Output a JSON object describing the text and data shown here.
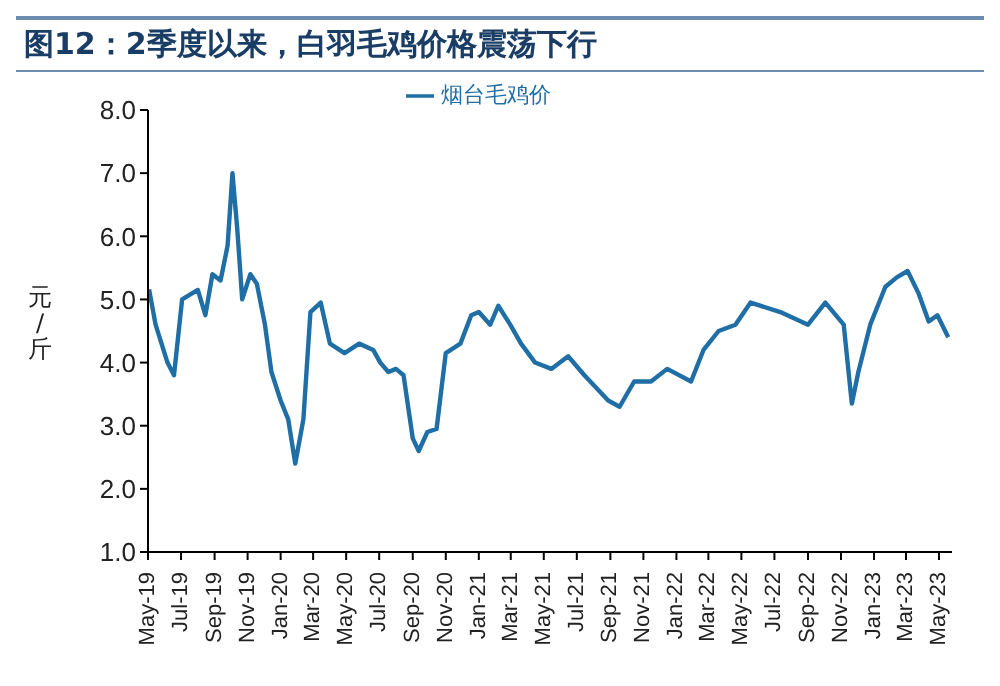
{
  "chart_data": {
    "type": "line",
    "title": "图12：2季度以来，白羽毛鸡价格震荡下行",
    "ylabel": "元/斤",
    "xlim": [
      "2019-05-01",
      "2023-05-25"
    ],
    "xticks": [
      {
        "value": "2019-05",
        "label": "May-19"
      },
      {
        "value": "2019-07",
        "label": "Jul-19"
      },
      {
        "value": "2019-09",
        "label": "Sep-19"
      },
      {
        "value": "2019-11",
        "label": "Nov-19"
      },
      {
        "value": "2020-01",
        "label": "Jan-20"
      },
      {
        "value": "2020-03",
        "label": "Mar-20"
      },
      {
        "value": "2020-05",
        "label": "May-20"
      },
      {
        "value": "2020-07",
        "label": "Jul-20"
      },
      {
        "value": "2020-09",
        "label": "Sep-20"
      },
      {
        "value": "2020-11",
        "label": "Nov-20"
      },
      {
        "value": "2021-01",
        "label": "Jan-21"
      },
      {
        "value": "2021-03",
        "label": "Mar-21"
      },
      {
        "value": "2021-05",
        "label": "May-21"
      },
      {
        "value": "2021-07",
        "label": "Jul-21"
      },
      {
        "value": "2021-09",
        "label": "Sep-21"
      },
      {
        "value": "2021-11",
        "label": "Nov-21"
      },
      {
        "value": "2022-01",
        "label": "Jan-22"
      },
      {
        "value": "2022-03",
        "label": "Mar-22"
      },
      {
        "value": "2022-05",
        "label": "May-22"
      },
      {
        "value": "2022-07",
        "label": "Jul-22"
      },
      {
        "value": "2022-09",
        "label": "Sep-22"
      },
      {
        "value": "2022-11",
        "label": "Nov-22"
      },
      {
        "value": "2023-01",
        "label": "Jan-23"
      },
      {
        "value": "2023-03",
        "label": "Mar-23"
      },
      {
        "value": "2023-05",
        "label": "May-23"
      }
    ],
    "ylim": [
      1,
      8
    ],
    "yticks": [
      {
        "value": 1,
        "label": "1.0"
      },
      {
        "value": 2,
        "label": "2.0"
      },
      {
        "value": 3,
        "label": "3.0"
      },
      {
        "value": 4,
        "label": "4.0"
      },
      {
        "value": 5,
        "label": "5.0"
      },
      {
        "value": 6,
        "label": "6.0"
      },
      {
        "value": 7,
        "label": "7.0"
      },
      {
        "value": 8,
        "label": "8.0"
      }
    ],
    "grid": false,
    "legend": "top",
    "marker": "none",
    "line_style": "solid",
    "x": [
      "2019-05-03",
      "2019-05-15",
      "2019-06-06",
      "2019-06-18",
      "2019-07-03",
      "2019-08-01",
      "2019-08-15",
      "2019-08-28",
      "2019-09-12",
      "2019-09-25",
      "2019-10-04",
      "2019-10-13",
      "2019-10-22",
      "2019-11-06",
      "2019-11-18",
      "2019-12-03",
      "2019-12-15",
      "2020-01-01",
      "2020-01-15",
      "2020-01-28",
      "2020-02-12",
      "2020-02-25",
      "2020-03-15",
      "2020-04-01",
      "2020-04-28",
      "2020-05-25",
      "2020-06-20",
      "2020-07-03",
      "2020-07-18",
      "2020-08-01",
      "2020-08-15",
      "2020-09-01",
      "2020-09-12",
      "2020-09-28",
      "2020-10-15",
      "2020-11-01",
      "2020-11-28",
      "2020-12-18",
      "2021-01-01",
      "2021-01-22",
      "2021-02-06",
      "2021-02-28",
      "2021-03-20",
      "2021-04-15",
      "2021-05-15",
      "2021-06-15",
      "2021-07-15",
      "2021-08-28",
      "2021-09-18",
      "2021-10-15",
      "2021-11-15",
      "2021-12-15",
      "2022-01-28",
      "2022-02-20",
      "2022-03-20",
      "2022-04-20",
      "2022-05-18",
      "2022-07-12",
      "2022-09-01",
      "2022-10-03",
      "2022-11-06",
      "2022-11-21",
      "2022-12-03",
      "2022-12-25",
      "2023-01-22",
      "2023-02-12",
      "2023-03-04",
      "2023-03-24",
      "2023-04-12",
      "2023-04-28",
      "2023-05-18"
    ],
    "series": [
      {
        "name": "烟台毛鸡价",
        "color": "#1f6ea6",
        "values": [
          5.16,
          4.6,
          4.0,
          3.8,
          5.0,
          5.15,
          4.75,
          5.4,
          5.3,
          5.85,
          7.0,
          6.1,
          5.0,
          5.4,
          5.25,
          4.6,
          3.85,
          3.4,
          3.1,
          2.4,
          3.1,
          4.8,
          4.95,
          4.3,
          4.15,
          4.3,
          4.2,
          4.0,
          3.85,
          3.9,
          3.8,
          2.8,
          2.6,
          2.9,
          2.95,
          4.15,
          4.3,
          4.75,
          4.8,
          4.6,
          4.9,
          4.6,
          4.3,
          4.0,
          3.9,
          4.1,
          3.8,
          3.4,
          3.3,
          3.7,
          3.7,
          3.9,
          3.7,
          4.2,
          4.5,
          4.6,
          4.95,
          4.8,
          4.6,
          4.95,
          4.6,
          3.35,
          3.85,
          4.6,
          5.2,
          5.35,
          5.45,
          5.1,
          4.65,
          4.75,
          4.4
        ]
      }
    ]
  }
}
